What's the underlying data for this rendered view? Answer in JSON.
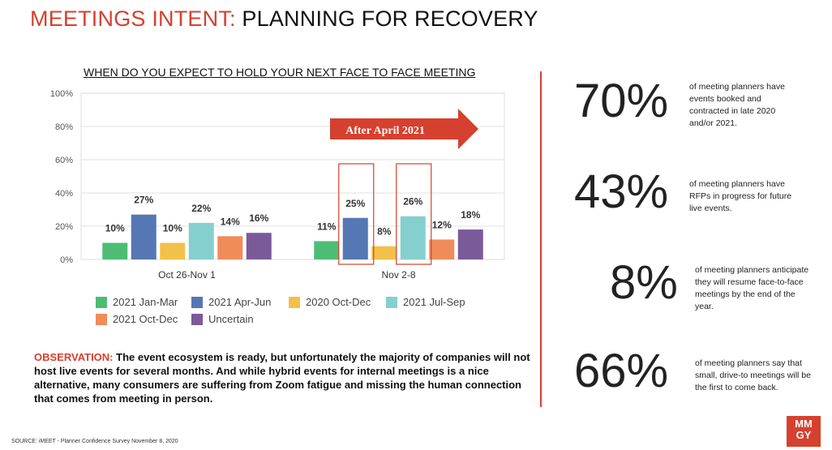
{
  "header": {
    "title_accent": "MEETINGS INTENT:",
    "title_rest": "PLANNING FOR RECOVERY"
  },
  "colors": {
    "accent": "#d6402e"
  },
  "chart_data": {
    "type": "bar",
    "title": "WHEN DO YOU EXPECT TO HOLD YOUR NEXT FACE TO FACE MEETING",
    "categories": [
      "Oct 26-Nov 1",
      "Nov 2-8"
    ],
    "ylim": [
      0,
      100
    ],
    "yticks": [
      "0%",
      "20%",
      "40%",
      "60%",
      "80%",
      "100%"
    ],
    "series": [
      {
        "name": "2021 Jan-Mar",
        "color": "#4dbd74",
        "values": [
          10,
          11
        ],
        "labels": [
          "10%",
          "11%"
        ]
      },
      {
        "name": "2021 Apr-Jun",
        "color": "#5577b3",
        "values": [
          27,
          25
        ],
        "labels": [
          "27%",
          "25%"
        ]
      },
      {
        "name": "2020 Oct-Dec",
        "color": "#f2c14a",
        "values": [
          10,
          8
        ],
        "labels": [
          "10%",
          "8%"
        ]
      },
      {
        "name": "2021 Jul-Sep",
        "color": "#86cfcf",
        "values": [
          22,
          26
        ],
        "labels": [
          "22%",
          "26%"
        ]
      },
      {
        "name": "2021 Oct-Dec",
        "color": "#f08c5a",
        "values": [
          14,
          12
        ],
        "labels": [
          "14%",
          "12%"
        ]
      },
      {
        "name": "Uncertain",
        "color": "#7b5a99",
        "values": [
          16,
          18
        ],
        "labels": [
          "16%",
          "18%"
        ]
      }
    ],
    "annotation": "After April 2021",
    "highlighted": [
      "Nov 2-8 / 2021 Apr-Jun",
      "Nov 2-8 / 2021 Jul-Sep"
    ]
  },
  "observation": {
    "label": "OBSERVATION:",
    "text": " The event ecosystem is ready, but unfortunately the majority of companies will not host live events for several months.  And while hybrid events for internal meetings is a nice alternative, many consumers are suffering from Zoom fatigue and missing the human connection that comes from meeting in person."
  },
  "source": "SOURCE: iMEET - Planner Confidence Survey November 8, 2020",
  "stats": [
    {
      "value": "70%",
      "desc": "of meeting planners have events booked and contracted in late  2020 and/or 2021."
    },
    {
      "value": "43%",
      "desc": "of meeting planners have RFPs in progress for future live events."
    },
    {
      "value": "8%",
      "desc": "of meeting planners anticipate they will resume face-to-face meetings by the end of the year."
    },
    {
      "value": "66%",
      "desc": "of meeting planners say that small, drive-to meetings will be the first to come back."
    }
  ],
  "logo": {
    "line1": "MM",
    "line2": "GY"
  }
}
